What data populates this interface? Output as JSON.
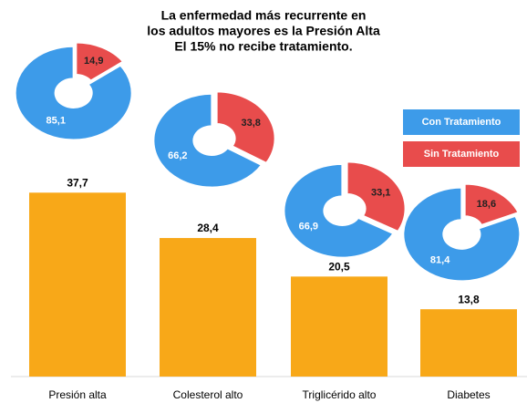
{
  "chart_data": {
    "type": "bar",
    "title": [
      "La enfermedad más recurrente en",
      "los adultos mayores es la Presión Alta",
      "El 15% no recibe tratamiento."
    ],
    "categories": [
      "Presión alta",
      "Colesterol alto",
      "Triglicérido alto",
      "Diabetes"
    ],
    "values": [
      37.7,
      28.4,
      20.5,
      13.8
    ],
    "value_labels": [
      "37,7",
      "28,4",
      "20,5",
      "13,8"
    ],
    "color": "#f8a818",
    "ylim": [
      0,
      40
    ],
    "donuts": {
      "type": "donut",
      "series": [
        {
          "name": "Con Tratamiento",
          "color": "#3d9be9",
          "values": [
            85.1,
            66.2,
            66.9,
            81.4
          ],
          "value_labels": [
            "85,1",
            "66,2",
            "66,9",
            "81,4"
          ]
        },
        {
          "name": "Sin Tratamiento",
          "color": "#e84c4c",
          "values": [
            14.9,
            33.8,
            33.1,
            18.6
          ],
          "value_labels": [
            "14,9",
            "33,8",
            "33,1",
            "18,6"
          ]
        }
      ]
    }
  }
}
